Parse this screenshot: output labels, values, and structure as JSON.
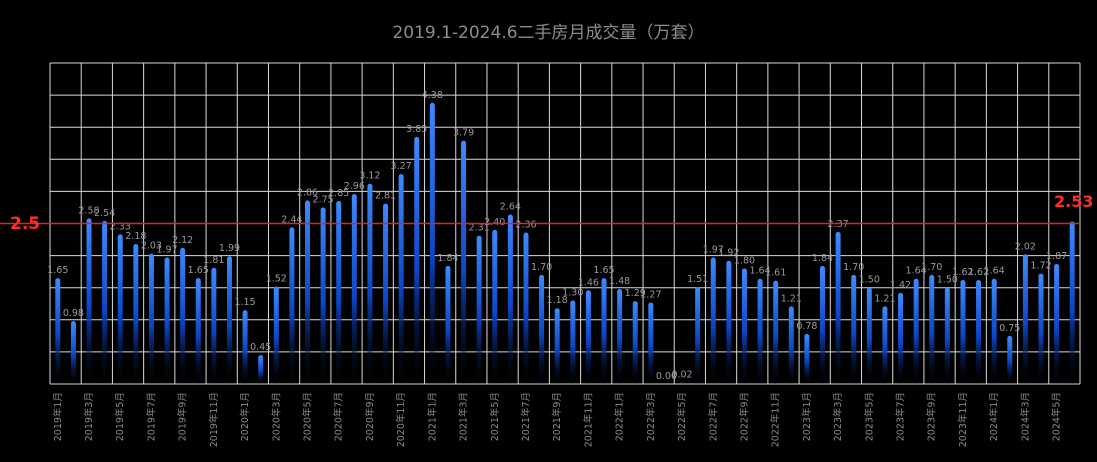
{
  "chart_data": {
    "type": "bar",
    "title": "2019.1-2024.6二手房月成交量（万套）",
    "x_tick_labels": [
      "2019年1月",
      "2019年3月",
      "2019年5月",
      "2019年7月",
      "2019年9月",
      "2019年11月",
      "2020年1月",
      "2020年3月",
      "2020年5月",
      "2020年7月",
      "2020年9月",
      "2020年11月",
      "2021年1月",
      "2021年3月",
      "2021年5月",
      "2021年7月",
      "2021年9月",
      "2021年11月",
      "2022年1月",
      "2022年3月",
      "2022年5月",
      "2022年7月",
      "2022年9月",
      "2022年11月",
      "2023年1月",
      "2023年3月",
      "2023年5月",
      "2023年7月",
      "2023年9月",
      "2023年11月",
      "2024年1月",
      "2024年3月",
      "2024年5月"
    ],
    "categories": [
      "2019-01",
      "2019-02",
      "2019-03",
      "2019-04",
      "2019-05",
      "2019-06",
      "2019-07",
      "2019-08",
      "2019-09",
      "2019-10",
      "2019-11",
      "2019-12",
      "2020-01",
      "2020-02",
      "2020-03",
      "2020-04",
      "2020-05",
      "2020-06",
      "2020-07",
      "2020-08",
      "2020-09",
      "2020-10",
      "2020-11",
      "2020-12",
      "2021-01",
      "2021-02",
      "2021-03",
      "2021-04",
      "2021-05",
      "2021-06",
      "2021-07",
      "2021-08",
      "2021-09",
      "2021-10",
      "2021-11",
      "2021-12",
      "2022-01",
      "2022-02",
      "2022-03",
      "2022-04",
      "2022-05",
      "2022-06",
      "2022-07",
      "2022-08",
      "2022-09",
      "2022-10",
      "2022-11",
      "2022-12",
      "2023-01",
      "2023-02",
      "2023-03",
      "2023-04",
      "2023-05",
      "2023-06",
      "2023-07",
      "2023-08",
      "2023-09",
      "2023-10",
      "2023-11",
      "2023-12",
      "2024-01",
      "2024-02",
      "2024-03",
      "2024-04",
      "2024-05",
      "2024-06"
    ],
    "values": [
      1.65,
      0.98,
      2.58,
      2.54,
      2.33,
      2.18,
      2.03,
      1.97,
      2.12,
      1.65,
      1.81,
      1.99,
      1.15,
      0.45,
      1.52,
      2.44,
      2.86,
      2.75,
      2.85,
      2.96,
      3.12,
      2.81,
      3.27,
      3.85,
      4.38,
      1.84,
      3.79,
      2.31,
      2.4,
      2.64,
      2.36,
      1.7,
      1.18,
      1.3,
      1.46,
      1.65,
      1.48,
      1.29,
      1.27,
      0.0,
      0.02,
      1.51,
      1.97,
      1.92,
      1.8,
      1.64,
      1.61,
      1.21,
      0.78,
      1.84,
      2.37,
      1.7,
      1.5,
      1.21,
      1.42,
      1.64,
      1.7,
      1.5,
      1.62,
      1.62,
      1.64,
      0.75,
      2.02,
      1.72,
      1.87,
      2.53
    ],
    "ylim": [
      0,
      5.0
    ],
    "grid": true,
    "reference_line": {
      "value": 2.5,
      "label": "2.5",
      "color": "#e02424"
    },
    "last_value_label": "2.53",
    "colors": {
      "bar_top": "#2f7dff",
      "bar_mid": "#0a3fb0",
      "label": "#9a9a9a",
      "grid": "#d9d9d9",
      "title": "#8c8c8c"
    }
  }
}
